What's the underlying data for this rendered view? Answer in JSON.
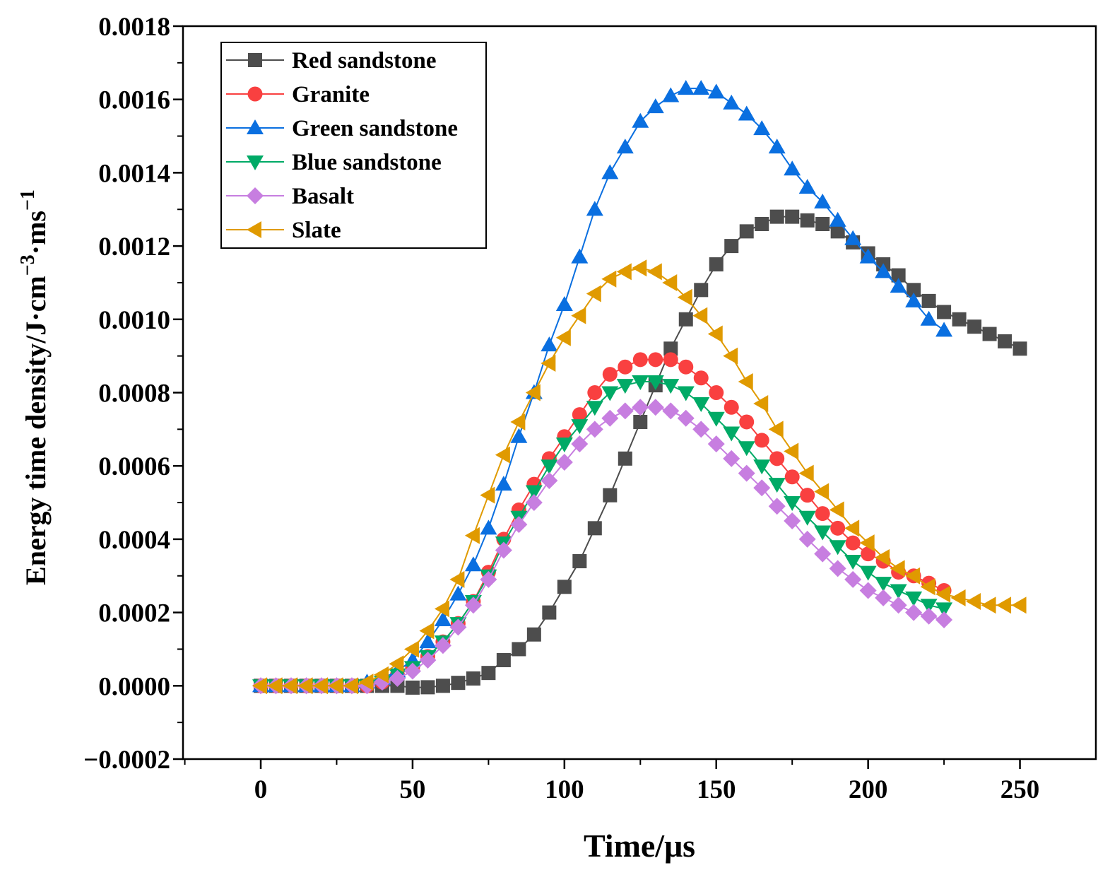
{
  "chart_data": {
    "type": "line",
    "title": "",
    "xlabel": "Time/μs",
    "ylabel": "Energy time density/J·cm",
    "ylabel_sup1": "−3",
    "ylabel_mid": "·ms",
    "ylabel_sup2": "−1",
    "xlim": [
      -25.6,
      275
    ],
    "ylim": [
      -0.0002,
      0.0018
    ],
    "x_ticks": [
      0,
      50,
      100,
      150,
      200,
      250
    ],
    "x_tick_labels": [
      "0",
      "50",
      "100",
      "150",
      "200",
      "250"
    ],
    "y_ticks": [
      -0.0002,
      0,
      0.0002,
      0.0004,
      0.0006,
      0.0008,
      0.001,
      0.0012,
      0.0014,
      0.0016,
      0.0018
    ],
    "y_tick_labels": [
      "−0.0002",
      "0.0000",
      "0.0002",
      "0.0004",
      "0.0006",
      "0.0008",
      "0.0010",
      "0.0012",
      "0.0014",
      "0.0016",
      "0.0018"
    ],
    "grid": false,
    "legend_position": "top-left",
    "x_start": 0,
    "x_step": 5,
    "series": [
      {
        "name": "Red sandstone",
        "color": "#4d4d4d",
        "marker": "square",
        "values": [
          0,
          0,
          0,
          0,
          0,
          0,
          0,
          0,
          0,
          0,
          -5e-06,
          -4e-06,
          0,
          8e-06,
          2e-05,
          3.5e-05,
          7e-05,
          0.0001,
          0.00014,
          0.0002,
          0.00027,
          0.00034,
          0.00043,
          0.00052,
          0.00062,
          0.00072,
          0.00082,
          0.00092,
          0.001,
          0.00108,
          0.00115,
          0.0012,
          0.00124,
          0.00126,
          0.00128,
          0.00128,
          0.00127,
          0.00126,
          0.00124,
          0.00121,
          0.00118,
          0.00115,
          0.00112,
          0.00108,
          0.00105,
          0.00102,
          0.001,
          0.00098,
          0.00096,
          0.00094,
          0.00092
        ]
      },
      {
        "name": "Granite",
        "color": "#f94040",
        "marker": "circle",
        "values": [
          0,
          0,
          0,
          0,
          0,
          0,
          0,
          0,
          1e-05,
          3e-05,
          5e-05,
          8e-05,
          0.00012,
          0.00017,
          0.00023,
          0.00031,
          0.0004,
          0.00048,
          0.00055,
          0.00062,
          0.00068,
          0.00074,
          0.0008,
          0.00085,
          0.00087,
          0.00089,
          0.00089,
          0.00089,
          0.00087,
          0.00084,
          0.0008,
          0.00076,
          0.00072,
          0.00067,
          0.00062,
          0.00057,
          0.00052,
          0.00047,
          0.00043,
          0.00039,
          0.00036,
          0.00034,
          0.00031,
          0.0003,
          0.00028,
          0.00026
        ]
      },
      {
        "name": "Green sandstone",
        "color": "#0a6fe0",
        "marker": "triangle-up",
        "values": [
          0,
          0,
          0,
          0,
          0,
          0,
          0,
          1e-05,
          2e-05,
          4e-05,
          7e-05,
          0.00012,
          0.00018,
          0.00025,
          0.00033,
          0.00043,
          0.00055,
          0.00068,
          0.0008,
          0.00093,
          0.00104,
          0.00117,
          0.0013,
          0.0014,
          0.00147,
          0.00154,
          0.00158,
          0.00161,
          0.00163,
          0.00163,
          0.00162,
          0.00159,
          0.00156,
          0.00152,
          0.00147,
          0.00141,
          0.00136,
          0.00132,
          0.00127,
          0.00122,
          0.00117,
          0.00113,
          0.00109,
          0.00105,
          0.001,
          0.00097
        ]
      },
      {
        "name": "Blue sandstone",
        "color": "#00aa66",
        "marker": "triangle-down",
        "values": [
          0,
          0,
          0,
          0,
          0,
          0,
          0,
          0,
          1e-05,
          3e-05,
          5e-05,
          8e-05,
          0.00012,
          0.00017,
          0.00023,
          0.0003,
          0.00039,
          0.00046,
          0.00053,
          0.0006,
          0.00066,
          0.00071,
          0.00076,
          0.0008,
          0.00082,
          0.00083,
          0.00083,
          0.00082,
          0.0008,
          0.00077,
          0.00073,
          0.00069,
          0.00065,
          0.0006,
          0.00055,
          0.0005,
          0.00046,
          0.00042,
          0.00038,
          0.00034,
          0.00031,
          0.00028,
          0.00026,
          0.00024,
          0.00022,
          0.00021
        ]
      },
      {
        "name": "Basalt",
        "color": "#c77ee0",
        "marker": "diamond",
        "values": [
          0,
          0,
          0,
          0,
          0,
          0,
          0,
          0,
          1e-05,
          2e-05,
          4e-05,
          7e-05,
          0.00011,
          0.00016,
          0.00022,
          0.00029,
          0.00037,
          0.00044,
          0.0005,
          0.00056,
          0.00061,
          0.00066,
          0.0007,
          0.00073,
          0.00075,
          0.00076,
          0.00076,
          0.00075,
          0.00073,
          0.0007,
          0.00066,
          0.00062,
          0.00058,
          0.00054,
          0.00049,
          0.00045,
          0.0004,
          0.00036,
          0.00032,
          0.00029,
          0.00026,
          0.00024,
          0.00022,
          0.0002,
          0.00019,
          0.00018
        ]
      },
      {
        "name": "Slate",
        "color": "#e09a00",
        "marker": "triangle-left",
        "values": [
          0,
          0,
          0,
          0,
          0,
          0,
          0,
          1e-05,
          3e-05,
          6e-05,
          0.0001,
          0.00015,
          0.00021,
          0.00029,
          0.00041,
          0.00052,
          0.00063,
          0.00072,
          0.0008,
          0.00088,
          0.00095,
          0.00101,
          0.00107,
          0.00111,
          0.00113,
          0.00114,
          0.00113,
          0.0011,
          0.00106,
          0.00101,
          0.00096,
          0.0009,
          0.00083,
          0.00077,
          0.0007,
          0.00064,
          0.00058,
          0.00053,
          0.00048,
          0.00043,
          0.00039,
          0.00035,
          0.00032,
          0.0003,
          0.00027,
          0.00025,
          0.00024,
          0.00023,
          0.00022,
          0.00022,
          0.00022
        ]
      }
    ]
  }
}
